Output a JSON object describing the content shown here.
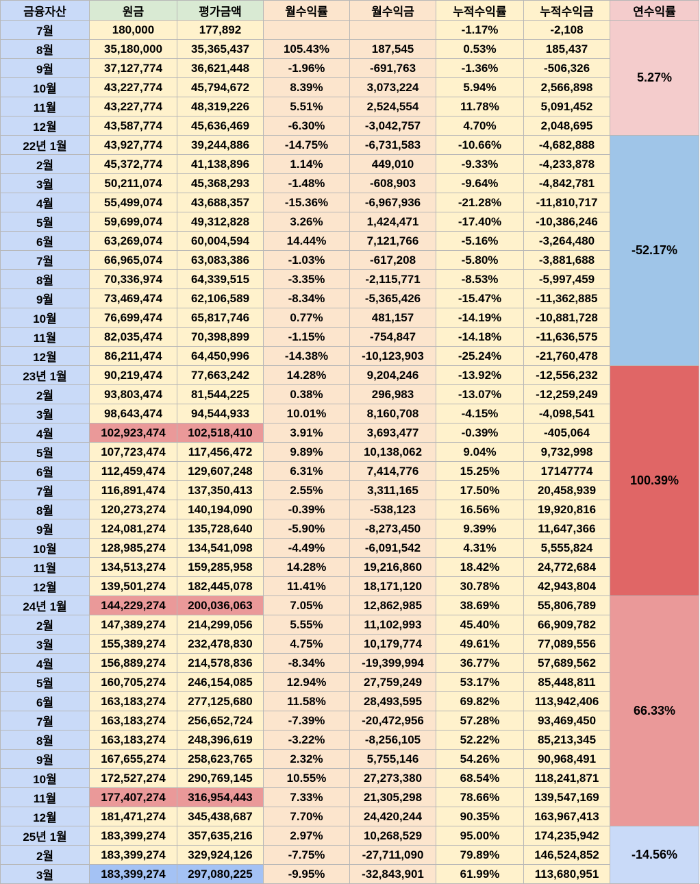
{
  "headers": [
    "금융자산",
    "원금",
    "평가금액",
    "월수익률",
    "월수익금",
    "누적수익률",
    "누적수익금",
    "연수익률"
  ],
  "colors": {
    "label_bg": "#c9daf8",
    "principal_bg": "#fff2cc",
    "monthly_bg": "#fce5cd",
    "highlight_red": "#ea9999",
    "highlight_blue": "#a4c2f4",
    "header_green": "#d9ead3",
    "header_pink": "#f4cccc"
  },
  "years": [
    {
      "annual_return": "5.27%",
      "annual_bg": "#f4cccc",
      "rows": [
        [
          "7월",
          "180,000",
          "177,892",
          "",
          "",
          "-1.17%",
          "-2,108"
        ],
        [
          "8월",
          "35,180,000",
          "35,365,437",
          "105.43%",
          "187,545",
          "0.53%",
          "185,437"
        ],
        [
          "9월",
          "37,127,774",
          "36,621,448",
          "-1.96%",
          "-691,763",
          "-1.36%",
          "-506,326"
        ],
        [
          "10월",
          "43,227,774",
          "45,794,672",
          "8.39%",
          "3,073,224",
          "5.94%",
          "2,566,898"
        ],
        [
          "11월",
          "43,227,774",
          "48,319,226",
          "5.51%",
          "2,524,554",
          "11.78%",
          "5,091,452"
        ],
        [
          "12월",
          "43,587,774",
          "45,636,469",
          "-6.30%",
          "-3,042,757",
          "4.70%",
          "2,048,695"
        ]
      ]
    },
    {
      "annual_return": "-52.17%",
      "annual_bg": "#9fc5e8",
      "rows": [
        [
          "22년 1월",
          "43,927,774",
          "39,244,886",
          "-14.75%",
          "-6,731,583",
          "-10.66%",
          "-4,682,888"
        ],
        [
          "2월",
          "45,372,774",
          "41,138,896",
          "1.14%",
          "449,010",
          "-9.33%",
          "-4,233,878"
        ],
        [
          "3월",
          "50,211,074",
          "45,368,293",
          "-1.48%",
          "-608,903",
          "-9.64%",
          "-4,842,781"
        ],
        [
          "4월",
          "55,499,074",
          "43,688,357",
          "-15.36%",
          "-6,967,936",
          "-21.28%",
          "-11,810,717"
        ],
        [
          "5월",
          "59,699,074",
          "49,312,828",
          "3.26%",
          "1,424,471",
          "-17.40%",
          "-10,386,246"
        ],
        [
          "6월",
          "63,269,074",
          "60,004,594",
          "14.44%",
          "7,121,766",
          "-5.16%",
          "-3,264,480"
        ],
        [
          "7월",
          "66,965,074",
          "63,083,386",
          "-1.03%",
          "-617,208",
          "-5.80%",
          "-3,881,688"
        ],
        [
          "8월",
          "70,336,974",
          "64,339,515",
          "-3.35%",
          "-2,115,771",
          "-8.53%",
          "-5,997,459"
        ],
        [
          "9월",
          "73,469,474",
          "62,106,589",
          "-8.34%",
          "-5,365,426",
          "-15.47%",
          "-11,362,885"
        ],
        [
          "10월",
          "76,699,474",
          "65,817,746",
          "0.77%",
          "481,157",
          "-14.19%",
          "-10,881,728"
        ],
        [
          "11월",
          "82,035,474",
          "70,398,899",
          "-1.15%",
          "-754,847",
          "-14.18%",
          "-11,636,575"
        ],
        [
          "12월",
          "86,211,474",
          "64,450,996",
          "-14.38%",
          "-10,123,903",
          "-25.24%",
          "-21,760,478"
        ]
      ]
    },
    {
      "annual_return": "100.39%",
      "annual_bg": "#e06666",
      "rows": [
        [
          "23년 1월",
          "90,219,474",
          "77,663,242",
          "14.28%",
          "9,204,246",
          "-13.92%",
          "-12,556,232"
        ],
        [
          "2월",
          "93,803,474",
          "81,544,225",
          "0.38%",
          "296,983",
          "-13.07%",
          "-12,259,249"
        ],
        [
          "3월",
          "98,643,474",
          "94,544,933",
          "10.01%",
          "8,160,708",
          "-4.15%",
          "-4,098,541"
        ],
        [
          "4월",
          "102,923,474",
          "102,518,410",
          "3.91%",
          "3,693,477",
          "-0.39%",
          "-405,064"
        ],
        [
          "5월",
          "107,723,474",
          "117,456,472",
          "9.89%",
          "10,138,062",
          "9.04%",
          "9,732,998"
        ],
        [
          "6월",
          "112,459,474",
          "129,607,248",
          "6.31%",
          "7,414,776",
          "15.25%",
          "17147774"
        ],
        [
          "7월",
          "116,891,474",
          "137,350,413",
          "2.55%",
          "3,311,165",
          "17.50%",
          "20,458,939"
        ],
        [
          "8월",
          "120,273,274",
          "140,194,090",
          "-0.39%",
          "-538,123",
          "16.56%",
          "19,920,816"
        ],
        [
          "9월",
          "124,081,274",
          "135,728,640",
          "-5.90%",
          "-8,273,450",
          "9.39%",
          "11,647,366"
        ],
        [
          "10월",
          "128,985,274",
          "134,541,098",
          "-4.49%",
          "-6,091,542",
          "4.31%",
          "5,555,824"
        ],
        [
          "11월",
          "134,513,274",
          "159,285,958",
          "14.28%",
          "19,216,860",
          "18.42%",
          "24,772,684"
        ],
        [
          "12월",
          "139,501,274",
          "182,445,078",
          "11.41%",
          "18,171,120",
          "30.78%",
          "42,943,804"
        ]
      ]
    },
    {
      "annual_return": "66.33%",
      "annual_bg": "#ea9999",
      "rows": [
        [
          "24년 1월",
          "144,229,274",
          "200,036,063",
          "7.05%",
          "12,862,985",
          "38.69%",
          "55,806,789"
        ],
        [
          "2월",
          "147,389,274",
          "214,299,056",
          "5.55%",
          "11,102,993",
          "45.40%",
          "66,909,782"
        ],
        [
          "3월",
          "155,389,274",
          "232,478,830",
          "4.75%",
          "10,179,774",
          "49.61%",
          "77,089,556"
        ],
        [
          "4월",
          "156,889,274",
          "214,578,836",
          "-8.34%",
          "-19,399,994",
          "36.77%",
          "57,689,562"
        ],
        [
          "5월",
          "160,705,274",
          "246,154,085",
          "12.94%",
          "27,759,249",
          "53.17%",
          "85,448,811"
        ],
        [
          "6월",
          "163,183,274",
          "277,125,680",
          "11.58%",
          "28,493,595",
          "69.82%",
          "113,942,406"
        ],
        [
          "7월",
          "163,183,274",
          "256,652,724",
          "-7.39%",
          "-20,472,956",
          "57.28%",
          "93,469,450"
        ],
        [
          "8월",
          "163,183,274",
          "248,396,619",
          "-3.22%",
          "-8,256,105",
          "52.22%",
          "85,213,345"
        ],
        [
          "9월",
          "167,655,274",
          "258,623,765",
          "2.32%",
          "5,755,146",
          "54.26%",
          "90,968,491"
        ],
        [
          "10월",
          "172,527,274",
          "290,769,145",
          "10.55%",
          "27,273,380",
          "68.54%",
          "118,241,871"
        ],
        [
          "11월",
          "177,407,274",
          "316,954,443",
          "7.33%",
          "21,305,298",
          "78.66%",
          "139,547,169"
        ],
        [
          "12월",
          "181,471,274",
          "345,438,687",
          "7.70%",
          "24,420,244",
          "90.35%",
          "163,967,413"
        ]
      ]
    },
    {
      "annual_return": "-14.56%",
      "annual_bg": "#c9daf8",
      "rows": [
        [
          "25년 1월",
          "183,399,274",
          "357,635,216",
          "2.97%",
          "10,268,529",
          "95.00%",
          "174,235,942"
        ],
        [
          "2월",
          "183,399,274",
          "329,924,126",
          "-7.75%",
          "-27,711,090",
          "79.89%",
          "146,524,852"
        ],
        [
          "3월",
          "183,399,274",
          "297,080,225",
          "-9.95%",
          "-32,843,901",
          "61.99%",
          "113,680,951"
        ]
      ]
    }
  ],
  "highlights": [
    {
      "year": 2,
      "row": 3,
      "color": "#ea9999"
    },
    {
      "year": 3,
      "row": 0,
      "color": "#ea9999"
    },
    {
      "year": 3,
      "row": 10,
      "color": "#ea9999"
    },
    {
      "year": 4,
      "row": 2,
      "color": "#a4c2f4"
    }
  ]
}
